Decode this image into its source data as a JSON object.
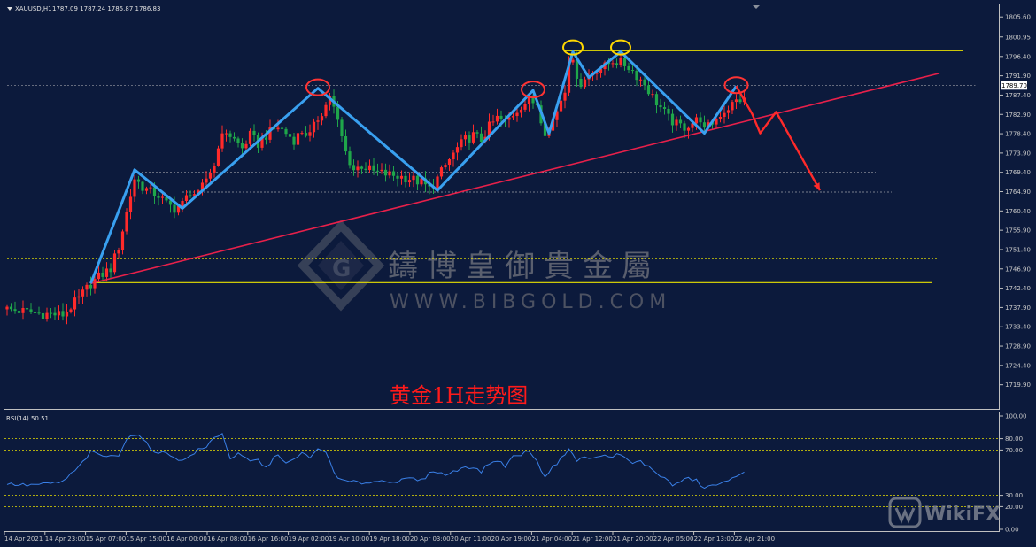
{
  "header": {
    "symbol": "XAUUSD,H1",
    "ohlc": "1787.09 1787.24 1785.87 1786.83"
  },
  "watermark": {
    "chinese": "鑄博皇御貴金屬",
    "url": "WWW.BIBGOLD.COM",
    "corner_logo": "WikiFX"
  },
  "caption": "黄金1H走势图",
  "current_price_label": "1789.70",
  "colors": {
    "background": "#0c1a3c",
    "bull": "#ff2a2a",
    "bear": "#1fa64a",
    "wave": "#39a0f0",
    "trend": "#e8204a",
    "level": "#e8e000",
    "circle_red": "#ff3333",
    "circle_yellow": "#ffd700",
    "forecast": "#ff2a2a",
    "rsi_line": "#3a80e8"
  },
  "chart_data": [
    {
      "type": "candlestick",
      "symbol": "XAUUSD",
      "timeframe": "H1",
      "ylim": [
        1715.5,
        1807.5
      ],
      "y_ticks": [
        "1805.60",
        "1800.95",
        "1796.40",
        "1791.90",
        "1787.40",
        "1782.90",
        "1778.40",
        "1773.90",
        "1769.40",
        "1764.90",
        "1760.40",
        "1755.90",
        "1751.40",
        "1746.90",
        "1742.40",
        "1737.90",
        "1733.40",
        "1728.90",
        "1724.40",
        "1719.90"
      ],
      "x_ticks": [
        "14 Apr 2021",
        "14 Apr 23:00",
        "15 Apr 07:00",
        "15 Apr 15:00",
        "16 Apr 00:00",
        "16 Apr 08:00",
        "16 Apr 16:00",
        "19 Apr 02:00",
        "19 Apr 10:00",
        "19 Apr 18:00",
        "20 Apr 03:00",
        "20 Apr 11:00",
        "20 Apr 19:00",
        "21 Apr 04:00",
        "21 Apr 12:00",
        "21 Apr 20:00",
        "22 Apr 05:00",
        "22 Apr 13:00",
        "22 Apr 21:00"
      ],
      "last_price": 1789.7,
      "close_anchors": [
        [
          0,
          1737.5
        ],
        [
          8,
          1736.5
        ],
        [
          14,
          1736.2
        ],
        [
          18,
          1740
        ],
        [
          21,
          1743.5
        ],
        [
          23,
          1745
        ],
        [
          26,
          1747
        ],
        [
          28,
          1752
        ],
        [
          30,
          1760
        ],
        [
          32,
          1768
        ],
        [
          34,
          1766
        ],
        [
          36,
          1764.8
        ],
        [
          38,
          1764
        ],
        [
          40,
          1762
        ],
        [
          42,
          1761
        ],
        [
          44,
          1762
        ],
        [
          46,
          1765
        ],
        [
          48,
          1764
        ],
        [
          50,
          1768
        ],
        [
          52,
          1771
        ],
        [
          53,
          1776
        ],
        [
          55,
          1779
        ],
        [
          57,
          1777
        ],
        [
          59,
          1775
        ],
        [
          61,
          1778
        ],
        [
          63,
          1776
        ],
        [
          65,
          1778
        ],
        [
          68,
          1780
        ],
        [
          70,
          1778.5
        ],
        [
          72,
          1777
        ],
        [
          74,
          1779
        ],
        [
          76,
          1778
        ],
        [
          78,
          1782
        ],
        [
          80,
          1785
        ],
        [
          81,
          1787.5
        ],
        [
          83,
          1781
        ],
        [
          85,
          1774
        ],
        [
          87,
          1770
        ],
        [
          89,
          1771
        ],
        [
          92,
          1769.5
        ],
        [
          95,
          1769
        ],
        [
          98,
          1768.5
        ],
        [
          101,
          1768
        ],
        [
          104,
          1767
        ],
        [
          106,
          1765.5
        ],
        [
          108,
          1768
        ],
        [
          110,
          1771
        ],
        [
          113,
          1775
        ],
        [
          115,
          1777
        ],
        [
          117,
          1778
        ],
        [
          119,
          1777
        ],
        [
          121,
          1780
        ],
        [
          123,
          1782
        ],
        [
          125,
          1781
        ],
        [
          127,
          1783
        ],
        [
          129,
          1785
        ],
        [
          131,
          1786
        ],
        [
          133,
          1785.5
        ],
        [
          134,
          1782
        ],
        [
          135,
          1779
        ],
        [
          136,
          1779
        ],
        [
          138,
          1784
        ],
        [
          140,
          1789
        ],
        [
          141,
          1796
        ],
        [
          142,
          1794.5
        ],
        [
          144,
          1790
        ],
        [
          146,
          1792
        ],
        [
          148,
          1793.5
        ],
        [
          150,
          1794
        ],
        [
          152,
          1795.5
        ],
        [
          154,
          1795
        ],
        [
          156,
          1794
        ],
        [
          158,
          1792
        ],
        [
          160,
          1790
        ],
        [
          162,
          1787
        ],
        [
          164,
          1784.5
        ],
        [
          166,
          1782
        ],
        [
          168,
          1780.5
        ],
        [
          170,
          1780
        ],
        [
          172,
          1781
        ],
        [
          174,
          1782
        ],
        [
          175,
          1779
        ],
        [
          177,
          1781
        ],
        [
          179,
          1783
        ],
        [
          181,
          1784.5
        ],
        [
          183,
          1786
        ],
        [
          185,
          1786.8
        ]
      ],
      "annotations": {
        "wave_points": [
          [
            21,
            1743.5
          ],
          [
            32,
            1770
          ],
          [
            44,
            1761
          ],
          [
            78,
            1789
          ],
          [
            108,
            1765.2
          ],
          [
            132,
            1788.5
          ],
          [
            136,
            1778.5
          ],
          [
            142,
            1797.5
          ],
          [
            146,
            1791.5
          ],
          [
            154,
            1797.5
          ],
          [
            175,
            1778.5
          ],
          [
            183,
            1789.5
          ]
        ],
        "trend_line": [
          [
            21,
            1743.5
          ],
          [
            234,
            1792.5
          ]
        ],
        "resistance_level": [
          [
            140,
            1797.8
          ],
          [
            240,
            1797.8
          ]
        ],
        "support_level": [
          [
            21,
            1743.7
          ],
          [
            232,
            1743.7
          ]
        ],
        "dashed_lines": [
          {
            "y": 1789.7,
            "x": [
              0,
              243
            ]
          },
          {
            "y": 1769.4,
            "x": [
              32,
              218
            ]
          },
          {
            "y": 1764.8,
            "x": [
              44,
              222
            ]
          },
          {
            "y": 1749.2,
            "x": [
              0,
              234
            ]
          }
        ],
        "circles_red": [
          [
            78,
            1789
          ],
          [
            132,
            1788.5
          ],
          [
            183,
            1789.5
          ]
        ],
        "circles_yellow": [
          [
            142,
            1798.5
          ],
          [
            154,
            1798.5
          ]
        ],
        "forecast_path": [
          [
            183,
            1789.5
          ],
          [
            187,
            1783
          ],
          [
            189,
            1778.5
          ],
          [
            193,
            1783.5
          ],
          [
            204,
            1765.2
          ]
        ]
      }
    },
    {
      "type": "line",
      "title": "RSI(14) 50.51",
      "ylim": [
        0,
        100
      ],
      "y_ticks": [
        100.0,
        80.0,
        70.0,
        30.0,
        20.0,
        0.0
      ],
      "levels": [
        80,
        70,
        30,
        20
      ],
      "anchors": [
        [
          0,
          40
        ],
        [
          5,
          39
        ],
        [
          10,
          40
        ],
        [
          14,
          42
        ],
        [
          18,
          55
        ],
        [
          21,
          68
        ],
        [
          24,
          65
        ],
        [
          26,
          64
        ],
        [
          28,
          66
        ],
        [
          30,
          80
        ],
        [
          32,
          84
        ],
        [
          34,
          80
        ],
        [
          36,
          71
        ],
        [
          38,
          68
        ],
        [
          40,
          67
        ],
        [
          42,
          64
        ],
        [
          44,
          60
        ],
        [
          46,
          65
        ],
        [
          48,
          70
        ],
        [
          50,
          72
        ],
        [
          52,
          82
        ],
        [
          54,
          84
        ],
        [
          56,
          63
        ],
        [
          58,
          66
        ],
        [
          61,
          60
        ],
        [
          63,
          61
        ],
        [
          65,
          54
        ],
        [
          68,
          67
        ],
        [
          70,
          58
        ],
        [
          72,
          61
        ],
        [
          74,
          67
        ],
        [
          76,
          64
        ],
        [
          78,
          70
        ],
        [
          80,
          68
        ],
        [
          83,
          44
        ],
        [
          86,
          42
        ],
        [
          89,
          41
        ],
        [
          92,
          42
        ],
        [
          95,
          43
        ],
        [
          98,
          42
        ],
        [
          101,
          45
        ],
        [
          104,
          43
        ],
        [
          107,
          52
        ],
        [
          110,
          48
        ],
        [
          113,
          52
        ],
        [
          115,
          56
        ],
        [
          117,
          54
        ],
        [
          119,
          51
        ],
        [
          121,
          58
        ],
        [
          123,
          61
        ],
        [
          125,
          56
        ],
        [
          127,
          64
        ],
        [
          129,
          66
        ],
        [
          131,
          70
        ],
        [
          133,
          59
        ],
        [
          135,
          47
        ],
        [
          137,
          55
        ],
        [
          139,
          62
        ],
        [
          141,
          72
        ],
        [
          143,
          60
        ],
        [
          145,
          64
        ],
        [
          147,
          62
        ],
        [
          149,
          65
        ],
        [
          151,
          64
        ],
        [
          153,
          66
        ],
        [
          155,
          63
        ],
        [
          157,
          58
        ],
        [
          159,
          60
        ],
        [
          161,
          55
        ],
        [
          163,
          50
        ],
        [
          165,
          45
        ],
        [
          167,
          39
        ],
        [
          169,
          42
        ],
        [
          171,
          45
        ],
        [
          173,
          43
        ],
        [
          175,
          36
        ],
        [
          177,
          39
        ],
        [
          179,
          40
        ],
        [
          181,
          42
        ],
        [
          183,
          48
        ],
        [
          185,
          50.51
        ]
      ]
    }
  ]
}
